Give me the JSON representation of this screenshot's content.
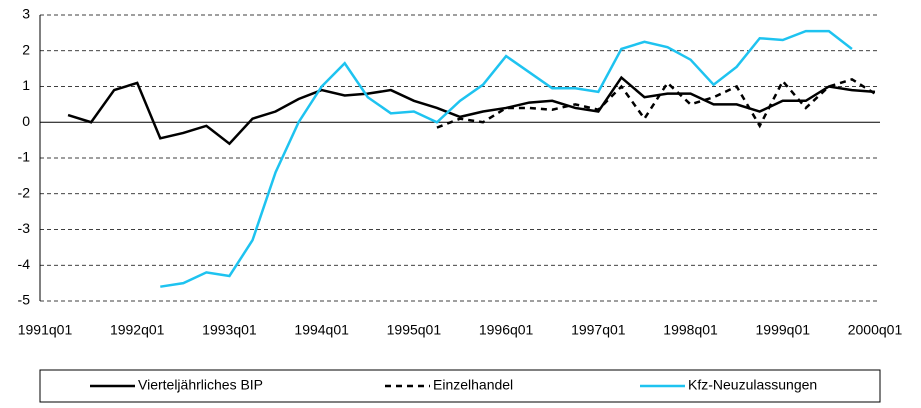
{
  "chart_data": {
    "type": "line",
    "categories": [
      "1991q01",
      null,
      null,
      null,
      "1992q01",
      null,
      null,
      null,
      "1993q01",
      null,
      null,
      null,
      "1994q01",
      null,
      null,
      null,
      "1995q01",
      null,
      null,
      null,
      "1996q01",
      null,
      null,
      null,
      "1997q01",
      null,
      null,
      null,
      "1998q01",
      null,
      null,
      null,
      "1999q01",
      null,
      null,
      null,
      "2000q01"
    ],
    "series": [
      {
        "name": "Vierteljährliches BIP",
        "color": "#000000",
        "dash": false,
        "values": [
          null,
          0.2,
          0,
          0.9,
          1.1,
          -0.45,
          -0.3,
          -0.1,
          -0.6,
          0.1,
          0.3,
          0.65,
          0.9,
          0.75,
          0.8,
          0.9,
          0.6,
          0.4,
          0.15,
          0.3,
          0.4,
          0.55,
          0.6,
          0.4,
          0.3,
          1.25,
          0.7,
          0.8,
          0.8,
          0.5,
          0.5,
          0.3,
          0.6,
          0.6,
          1.0,
          0.9,
          0.85
        ]
      },
      {
        "name": "Einzelhandel",
        "color": "#000000",
        "dash": true,
        "values": [
          null,
          null,
          null,
          null,
          null,
          null,
          null,
          null,
          null,
          null,
          null,
          null,
          null,
          null,
          null,
          null,
          null,
          -0.15,
          0.1,
          0,
          0.4,
          0.4,
          0.35,
          0.5,
          0.35,
          1.0,
          0.1,
          1.1,
          0.5,
          0.7,
          1.0,
          -0.1,
          1.15,
          0.4,
          1.0,
          1.2,
          0.8
        ]
      },
      {
        "name": "Kfz-Neuzulassungen",
        "color": "#1ec3f0",
        "dash": false,
        "values": [
          null,
          null,
          null,
          null,
          null,
          -4.6,
          -4.5,
          -4.2,
          -4.3,
          -3.3,
          -1.4,
          0,
          1.0,
          1.65,
          0.7,
          0.25,
          0.3,
          0,
          0.6,
          1.05,
          1.85,
          1.4,
          0.95,
          0.95,
          0.85,
          2.05,
          2.25,
          2.1,
          1.75,
          1.05,
          1.55,
          2.35,
          2.3,
          2.55,
          2.55,
          2.05,
          null
        ]
      }
    ],
    "ylim": [
      -5,
      3
    ],
    "yticks": [
      -5,
      -4,
      -3,
      -2,
      -1,
      0,
      1,
      2,
      3
    ],
    "grid": true
  }
}
